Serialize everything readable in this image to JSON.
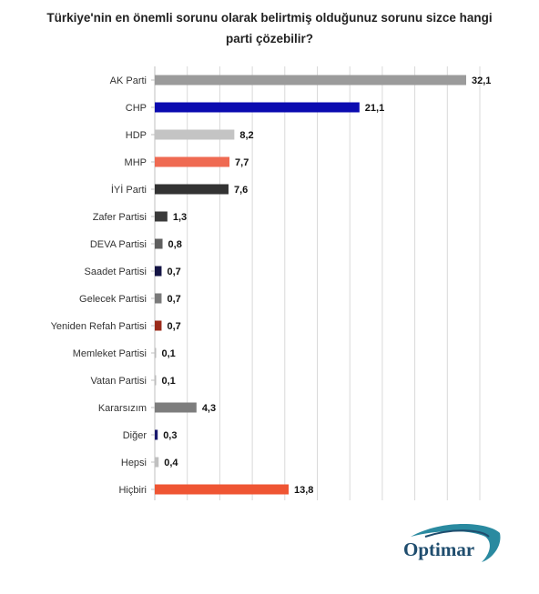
{
  "title_lines": [
    "Türkiye'nin en önemli sorunu olarak belirtmiş olduğunuz sorunu sizce hangi",
    "parti çözebilir?"
  ],
  "logo": {
    "text": "Optimar"
  },
  "chart_data": {
    "type": "bar",
    "orientation": "horizontal",
    "categories": [
      "AK Parti",
      "CHP",
      "HDP",
      "MHP",
      "İYİ Parti",
      "Zafer Partisi",
      "DEVA Partisi",
      "Saadet Partisi",
      "Gelecek Partisi",
      "Yeniden Refah Partisi",
      "Memleket Partisi",
      "Vatan Partisi",
      "Kararsızım",
      "Diğer",
      "Hepsi",
      "Hiçbiri"
    ],
    "values": [
      32.1,
      21.1,
      8.2,
      7.7,
      7.6,
      1.3,
      0.8,
      0.7,
      0.7,
      0.7,
      0.1,
      0.1,
      4.3,
      0.3,
      0.4,
      13.8
    ],
    "value_labels": [
      "32,1",
      "21,1",
      "8,2",
      "7,7",
      "7,6",
      "1,3",
      "0,8",
      "0,7",
      "0,7",
      "0,7",
      "0,1",
      "0,1",
      "4,3",
      "0,3",
      "0,4",
      "13,8"
    ],
    "colors": [
      "#9b9b9b",
      "#0b0bb0",
      "#c4c4c4",
      "#ef6a52",
      "#333333",
      "#3a3a3a",
      "#5f5f5f",
      "#151545",
      "#7a7a7a",
      "#9b2b1a",
      "#bcbcbc",
      "#bcbcbc",
      "#7d7d7d",
      "#1a1a6e",
      "#c0c0c0",
      "#ef5533"
    ],
    "xlim": [
      0,
      32.1
    ],
    "grid": true,
    "legend": "none"
  }
}
